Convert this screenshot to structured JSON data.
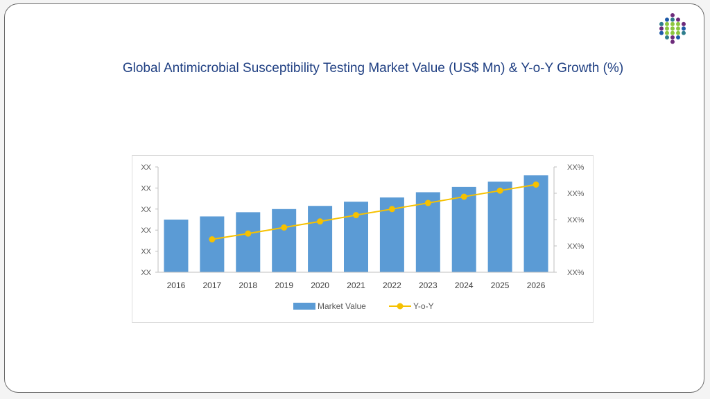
{
  "title": "Global Antimicrobial Susceptibility Testing Market Value (US$ Mn) & Y-o-Y Growth (%)",
  "logo": {
    "icon": "dot-cluster-logo-icon",
    "colors": [
      "#8cc63f",
      "#6d2b7b",
      "#1e5aa8",
      "#2e7d8c"
    ]
  },
  "chart_data": {
    "type": "bar",
    "categories": [
      "2016",
      "2017",
      "2018",
      "2019",
      "2020",
      "2021",
      "2022",
      "2023",
      "2024",
      "2025",
      "2026"
    ],
    "series": [
      {
        "name": "Market Value",
        "type": "bar",
        "axis": "left",
        "color": "#5b9bd5",
        "values": [
          2.5,
          2.65,
          2.85,
          3.0,
          3.15,
          3.35,
          3.55,
          3.8,
          4.05,
          4.3,
          4.6
        ]
      },
      {
        "name": "Y-o-Y",
        "type": "line",
        "axis": "right",
        "color": "#f6c100",
        "values": [
          null,
          1.25,
          1.47,
          1.7,
          1.93,
          2.17,
          2.4,
          2.63,
          2.87,
          3.1,
          3.33
        ]
      }
    ],
    "y_left_ticks": [
      "XX",
      "XX",
      "XX",
      "XX",
      "XX",
      "XX"
    ],
    "y_right_ticks": [
      "XX%",
      "XX%",
      "XX%",
      "XX%",
      "XX%"
    ],
    "ylim_left": [
      0,
      5
    ],
    "ylim_right": [
      0,
      4
    ],
    "legend_position": "bottom",
    "grid": false
  }
}
